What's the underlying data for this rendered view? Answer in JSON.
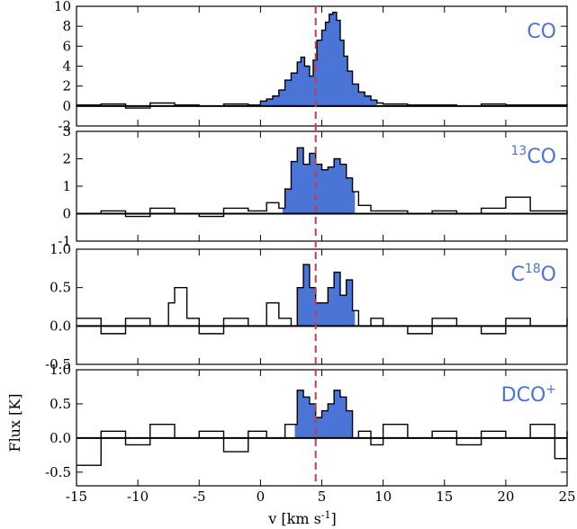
{
  "chart_data": {
    "type": "line",
    "xlabel": "v [km s",
    "xlabel_sup": "-1",
    "xlabel_end": "]",
    "ylabel": "Flux [K]",
    "xlim": [
      -15,
      25
    ],
    "x_ticks": [
      -15,
      -10,
      -5,
      0,
      5,
      10,
      15,
      20,
      25
    ],
    "x_tick_labels": [
      "-15",
      "-10",
      "-5",
      "0",
      "5",
      "10",
      "15",
      "20",
      "25"
    ],
    "marker_line": {
      "x": 4.5,
      "style": "dashed",
      "color": "#c43a55"
    },
    "fill_color": "#4a74d6",
    "label_color": "#4a74d6",
    "panels": [
      {
        "species": {
          "pre": "",
          "sup": "",
          "main": "CO"
        },
        "ylim": [
          -2,
          10
        ],
        "y_ticks": [
          -2,
          0,
          2,
          4,
          6,
          8,
          10
        ],
        "y_tick_labels": [
          "-2",
          "0",
          "2",
          "4",
          "6",
          "8",
          "10"
        ],
        "fill_range": [
          0,
          9.5
        ],
        "series": {
          "x": [
            -15,
            -13,
            -11,
            -9,
            -7,
            -5,
            -3,
            -1,
            0,
            0.5,
            1,
            1.5,
            2,
            2.5,
            3,
            3.3,
            3.6,
            4,
            4.3,
            4.6,
            5,
            5.3,
            5.6,
            5.9,
            6.2,
            6.5,
            6.8,
            7.1,
            7.5,
            8,
            8.5,
            9,
            9.5,
            10,
            12,
            14,
            16,
            18,
            20,
            22,
            25
          ],
          "values": [
            0.1,
            0.2,
            -0.2,
            0.3,
            0.1,
            0.0,
            0.2,
            0.1,
            0.5,
            0.7,
            1.0,
            1.6,
            2.6,
            3.3,
            4.4,
            4.9,
            4.0,
            3.0,
            4.6,
            6.6,
            7.6,
            8.4,
            9.2,
            9.4,
            8.6,
            6.6,
            5.0,
            3.5,
            2.2,
            1.4,
            1.0,
            0.6,
            0.3,
            0.2,
            0.1,
            0.1,
            0.0,
            0.2,
            0.1,
            0.1,
            0.0
          ]
        }
      },
      {
        "species": {
          "pre": "13",
          "sup": "",
          "main": "CO"
        },
        "ylim": [
          -1,
          3
        ],
        "y_ticks": [
          -1,
          0,
          1,
          2,
          3
        ],
        "y_tick_labels": [
          "-1",
          "0",
          "1",
          "2",
          "3"
        ],
        "fill_range": [
          1.8,
          7.7
        ],
        "series": {
          "x": [
            -15,
            -13,
            -11,
            -9,
            -7,
            -5,
            -3,
            -1,
            0.5,
            1.5,
            2,
            2.5,
            3,
            3.5,
            4,
            4.5,
            5,
            5.5,
            6,
            6.5,
            7,
            7.5,
            8,
            9,
            10,
            12,
            14,
            16,
            18,
            20,
            22,
            25
          ],
          "values": [
            0.0,
            0.1,
            -0.1,
            0.2,
            0.0,
            -0.1,
            0.2,
            0.1,
            0.4,
            0.2,
            0.9,
            1.9,
            2.4,
            1.8,
            2.2,
            1.8,
            1.6,
            1.7,
            2.0,
            1.8,
            1.3,
            0.8,
            0.3,
            0.1,
            0.1,
            0.0,
            0.1,
            0.0,
            0.2,
            0.6,
            0.1,
            0.0
          ]
        }
      },
      {
        "species": {
          "pre": "C",
          "sup": "18",
          "main": "O"
        },
        "ylim": [
          -0.5,
          1.0
        ],
        "y_ticks": [
          -0.5,
          0.0,
          0.5,
          1.0
        ],
        "y_tick_labels": [
          "-0.5",
          "0.0",
          "0.5",
          "1.0"
        ],
        "fill_range": [
          2.8,
          7.7
        ],
        "series": {
          "x": [
            -15,
            -13,
            -11,
            -9,
            -7.5,
            -7,
            -6,
            -5,
            -3,
            -1,
            0.5,
            1.5,
            2.5,
            3,
            3.5,
            4,
            4.5,
            5,
            5.5,
            6,
            6.5,
            7,
            7.5,
            8,
            9,
            10,
            12,
            14,
            16,
            18,
            20,
            22,
            25
          ],
          "values": [
            0.1,
            -0.1,
            0.1,
            0.0,
            0.3,
            0.5,
            0.1,
            -0.1,
            0.1,
            0.0,
            0.3,
            0.1,
            0.0,
            0.5,
            0.8,
            0.5,
            0.3,
            0.3,
            0.5,
            0.7,
            0.4,
            0.6,
            0.2,
            0.0,
            0.1,
            0.0,
            -0.1,
            0.1,
            0.0,
            -0.1,
            0.1,
            0.0,
            0.1
          ]
        }
      },
      {
        "species": {
          "pre": "",
          "sup": "+",
          "main": "DCO"
        },
        "ylim": [
          -0.7,
          1.0
        ],
        "y_ticks": [
          -0.5,
          0.0,
          0.5,
          1.0
        ],
        "y_tick_labels": [
          "-0.5",
          "0.0",
          "0.5",
          "1.0"
        ],
        "fill_range": [
          2.8,
          7.5
        ],
        "series": {
          "x": [
            -15,
            -13,
            -11,
            -9,
            -7,
            -5,
            -3,
            -1,
            0.5,
            2,
            3,
            3.5,
            4,
            4.5,
            5,
            5.5,
            6,
            6.5,
            7,
            7.5,
            8,
            9,
            10,
            12,
            14,
            16,
            18,
            20,
            22,
            24,
            25
          ],
          "values": [
            -0.4,
            0.1,
            -0.1,
            0.2,
            0.0,
            0.1,
            -0.2,
            0.1,
            0.0,
            0.2,
            0.7,
            0.6,
            0.5,
            0.3,
            0.4,
            0.5,
            0.7,
            0.6,
            0.4,
            0.0,
            0.1,
            -0.1,
            0.2,
            0.0,
            0.1,
            -0.1,
            0.1,
            0.0,
            0.2,
            -0.3,
            0.1
          ]
        }
      }
    ]
  }
}
